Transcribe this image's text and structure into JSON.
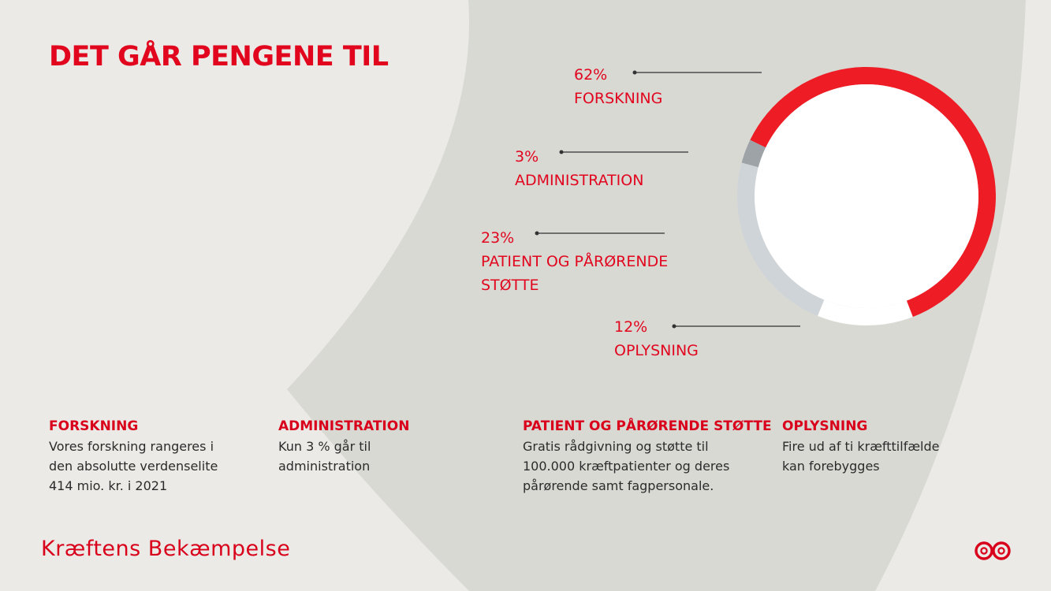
{
  "title": "DET GÅR PENGENE TIL",
  "colors": {
    "background": "#EBEAE6",
    "panel": "#D9D9D4",
    "accent_red": "#E1051E",
    "forskning": "#EE1C25",
    "administration": "#9EA3A8",
    "patient": "#CFD4D8",
    "oplysning": "#FFFFFF"
  },
  "chart_data": {
    "type": "pie",
    "title": "",
    "slices": [
      {
        "label": "FORSKNING",
        "value": 62,
        "display": "62%",
        "color": "#EE1C25"
      },
      {
        "label": "ADMINISTRATION",
        "value": 3,
        "display": "3%",
        "color": "#9EA3A8"
      },
      {
        "label": "PATIENT OG PÅRØRENDE STØTTE",
        "value": 23,
        "display": "23%",
        "color": "#CFD4D8"
      },
      {
        "label": "OPLYSNING",
        "value": 12,
        "display": "12%",
        "color": "#FFFFFF"
      }
    ],
    "callouts": [
      {
        "pct": "62%",
        "lines": [
          "FORSKNING"
        ]
      },
      {
        "pct": "3%",
        "lines": [
          "ADMINISTRATION"
        ]
      },
      {
        "pct": "23%",
        "lines": [
          "PATIENT OG PÅRØRENDE",
          "STØTTE"
        ]
      },
      {
        "pct": "12%",
        "lines": [
          "OPLYSNING"
        ]
      }
    ],
    "legend": "callouts-left"
  },
  "info": [
    {
      "heading": "FORSKNING",
      "lines": [
        "Vores forskning rangeres i",
        "den absolutte verdenselite",
        "414 mio. kr. i 2021"
      ]
    },
    {
      "heading": "ADMINISTRATION",
      "lines": [
        "Kun 3 % går til",
        "administration"
      ]
    },
    {
      "heading": "PATIENT OG PÅRØRENDE STØTTE",
      "lines": [
        "Gratis rådgivning og støtte til",
        "100.000 kræftpatienter og deres",
        "pårørende samt fagpersonale."
      ]
    },
    {
      "heading": "OPLYSNING",
      "lines": [
        "Fire ud af ti kræfttilfælde",
        "kan forebygges"
      ]
    }
  ],
  "brand": {
    "name": "Kræftens Bekæmpelse",
    "logo_icon": "infinity-logo-icon"
  }
}
